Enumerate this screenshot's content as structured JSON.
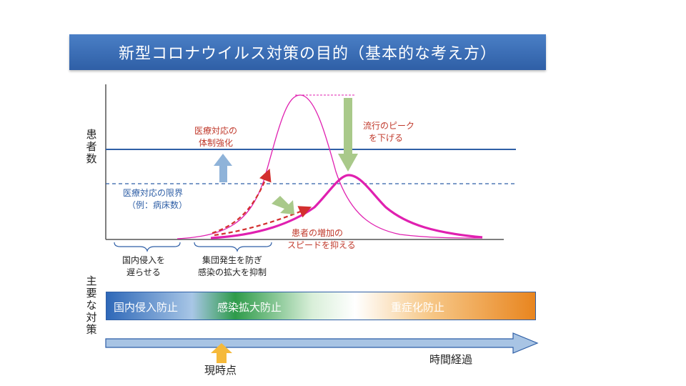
{
  "title": "新型コロナウイルス対策の目的（基本的な考え方）",
  "yaxis_label": [
    "患",
    "者",
    "数"
  ],
  "labels": {
    "strengthen": [
      "医療対応の",
      "体制強化"
    ],
    "limit": [
      "医療対応の限界",
      "（例：病床数）"
    ],
    "peak": [
      "流行のピーク",
      "を下げる"
    ],
    "speed": [
      "患者の増加の",
      "スピードを抑える"
    ],
    "delay": [
      "国内侵入を",
      "遅らせる"
    ],
    "cluster": [
      "集団発生を防ぎ",
      "感染の拡大を抑制"
    ]
  },
  "measures_label": [
    "主",
    "要",
    "な",
    "対",
    "策"
  ],
  "band": {
    "items": [
      "国内侵入防止",
      "感染拡大防止",
      "重症化防止"
    ]
  },
  "timeline": {
    "now": "現時点",
    "elapsed": "時間経過"
  },
  "colors": {
    "title_bar": "#2f5fa6",
    "curve": "#e020b0",
    "arrow_red": "#d32f2f",
    "arrow_green": "#a9c98a",
    "arrow_blue": "#8fb3d9",
    "now_arrow": "#f5b93a"
  }
}
